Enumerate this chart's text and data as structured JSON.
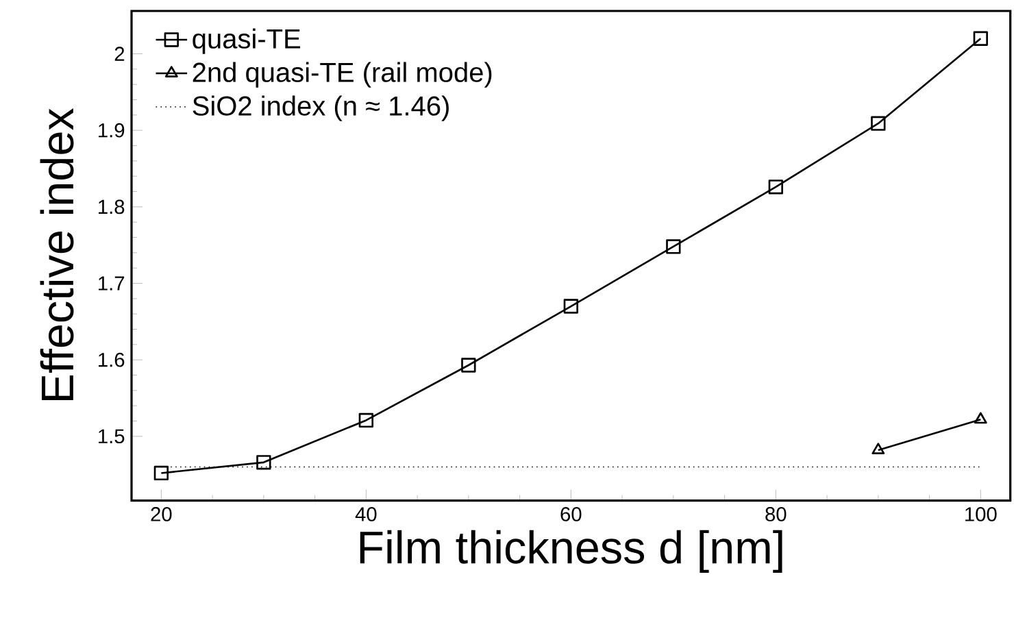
{
  "chart_data": {
    "type": "line",
    "xlabel": "Film thickness d [nm]",
    "ylabel": "Effective index",
    "xlim": [
      17.1,
      102.9
    ],
    "ylim": [
      1.416,
      2.056
    ],
    "xticks": [
      20,
      40,
      60,
      80,
      100
    ],
    "yticks": [
      1.5,
      1.6,
      1.7,
      1.8,
      1.9,
      2
    ],
    "legend": "top left",
    "grid": false,
    "line_style": "solid",
    "series": [
      {
        "name": "quasi-TE",
        "color": "#000000",
        "marker": "square",
        "x": [
          20,
          30,
          40,
          50,
          60,
          70,
          80,
          90,
          100
        ],
        "values": [
          1.452,
          1.466,
          1.521,
          1.593,
          1.67,
          1.748,
          1.826,
          1.909,
          2.02
        ]
      },
      {
        "name": "2nd quasi-TE (rail mode)",
        "color": "#000000",
        "marker": "triangle",
        "x": [
          90,
          100
        ],
        "values": [
          1.482,
          1.522
        ]
      }
    ],
    "ref_lines": [
      {
        "axis": "y",
        "value": 1.46,
        "label": "SiO2 index (n ≈ 1.46)",
        "color": "#000000",
        "line_style": "dotted"
      }
    ]
  }
}
